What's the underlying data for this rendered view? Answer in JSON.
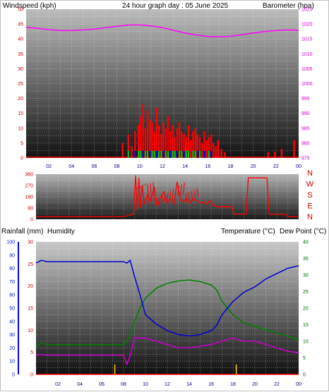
{
  "colors": {
    "wind": "#ff0000",
    "baro": "#ff00ff",
    "dir": "#ff0000",
    "rain": "#ff0000",
    "humidity": "#0000cc",
    "temperature": "#008000",
    "dewpoint": "#cc00cc",
    "title": "#ffff00",
    "windAxis": "#cc0000",
    "baroAxis": "#cc00cc",
    "humAxis": "#0000ff",
    "tempAxis": "#006600",
    "rainAxis": "#cc0000",
    "dirLetters": "#cc0000"
  },
  "chart_data": [
    {
      "type": "bar",
      "title": "24 hour graph day : 05 June 2025",
      "ylabel": "Windspeed (kph)",
      "y2label": "Barometer (hpa)",
      "ylim": [
        0,
        50
      ],
      "y2lim": [
        975,
        1025
      ],
      "yticks": [
        "50",
        "45",
        "40",
        "35",
        "30",
        "25",
        "20",
        "15",
        "10",
        "5",
        "0"
      ],
      "y2ticks": [
        "1025",
        "1020",
        "1015",
        "1010",
        "1005",
        "1000",
        "995",
        "990",
        "985",
        "980",
        "975"
      ],
      "xticks": [
        "02",
        "04",
        "06",
        "08",
        "10",
        "12",
        "14",
        "16",
        "18",
        "20",
        "22",
        "00"
      ],
      "series": [
        {
          "name": "Windspeed",
          "kind": "bars",
          "x": [
            8.5,
            9.0,
            9.3,
            9.6,
            9.9,
            10.1,
            10.3,
            10.5,
            10.7,
            10.9,
            11.1,
            11.3,
            11.5,
            11.7,
            11.9,
            12.1,
            12.3,
            12.5,
            12.7,
            12.9,
            13.1,
            13.3,
            13.5,
            13.7,
            13.9,
            14.1,
            14.3,
            14.5,
            14.7,
            14.9,
            15.1,
            15.3,
            15.5,
            15.7,
            15.9,
            16.1,
            16.3,
            16.5,
            16.7,
            16.9,
            17.2,
            17.5,
            21.3,
            21.9,
            22.5,
            23.6
          ],
          "values": [
            5,
            8,
            4,
            9,
            11,
            14,
            18,
            10,
            16,
            13,
            12,
            9,
            17,
            11,
            8,
            12,
            10,
            14,
            9,
            11,
            7,
            10,
            12,
            9,
            8,
            7,
            11,
            6,
            9,
            10,
            8,
            7,
            5,
            9,
            6,
            7,
            8,
            5,
            4,
            6,
            3,
            2,
            2,
            2,
            3,
            6
          ]
        },
        {
          "name": "Barometer",
          "kind": "line",
          "x": [
            0,
            1,
            2,
            3,
            4,
            5,
            6,
            7,
            8,
            9,
            10,
            11,
            12,
            13,
            14,
            15,
            16,
            17,
            18,
            19,
            20,
            21,
            22,
            23,
            24
          ],
          "values": [
            1018.9,
            1018.6,
            1018.1,
            1017.8,
            1017.8,
            1018.0,
            1018.3,
            1018.8,
            1019.3,
            1019.7,
            1019.7,
            1019.4,
            1018.8,
            1017.9,
            1017.0,
            1016.3,
            1015.8,
            1015.7,
            1015.9,
            1016.4,
            1017.0,
            1017.5,
            1017.8,
            1018.0,
            1017.9
          ]
        }
      ]
    },
    {
      "type": "line",
      "ylabel_letters": [
        "N",
        "W",
        "S",
        "E",
        "N"
      ],
      "ylim": [
        0,
        360
      ],
      "yticks": [
        "360",
        "270",
        "180",
        "90",
        "0"
      ],
      "x": [
        0,
        2,
        4,
        6,
        8,
        8.9,
        9.1,
        9.25,
        9.4,
        9.55,
        9.7,
        9.9,
        10.2,
        10.5,
        10.8,
        11.1,
        11.4,
        11.7,
        12.0,
        12.3,
        12.6,
        12.9,
        13.2,
        13.5,
        13.8,
        14.1,
        14.4,
        14.7,
        15.0,
        15.3,
        15.6,
        15.9,
        16.2,
        16.5,
        17.0,
        17.5,
        17.9,
        18.1,
        19.2,
        19.4,
        19.6,
        21.1,
        21.3,
        22.8,
        23.0,
        24
      ],
      "values": [
        20,
        20,
        20,
        20,
        20,
        40,
        350,
        70,
        330,
        90,
        270,
        120,
        200,
        150,
        260,
        110,
        180,
        220,
        130,
        160,
        120,
        300,
        150,
        140,
        170,
        130,
        160,
        150,
        130,
        140,
        120,
        150,
        110,
        100,
        100,
        100,
        100,
        40,
        40,
        330,
        330,
        330,
        40,
        40,
        20,
        20
      ]
    },
    {
      "type": "line",
      "ylabel": "Humidity",
      "y2label": "Temperature (°C)",
      "y2label2": "Dew Point (°C)",
      "rain_label": "Rainfall (mm)",
      "ylim": [
        0,
        100
      ],
      "rainlim": [
        0,
        30
      ],
      "templim": [
        0,
        40
      ],
      "yticks": [
        "100",
        "90",
        "80",
        "70",
        "60",
        "50",
        "40",
        "30",
        "20",
        "10",
        "0"
      ],
      "rainticks": [
        "30",
        "25",
        "20",
        "15",
        "10",
        "5",
        "0"
      ],
      "tempticks": [
        "40",
        "35",
        "30",
        "25",
        "20",
        "15",
        "10",
        "5",
        "0"
      ],
      "xticks": [
        "02",
        "04",
        "06",
        "08",
        "10",
        "12",
        "14",
        "16",
        "18",
        "20",
        "22",
        "00"
      ],
      "x": [
        0,
        0.5,
        1,
        2,
        3,
        4,
        5,
        6,
        7,
        8,
        8.3,
        8.6,
        9,
        9.5,
        10,
        11,
        12,
        13,
        14,
        15,
        16,
        16.5,
        17,
        18,
        19,
        20,
        21,
        22,
        23,
        24
      ],
      "series": [
        {
          "name": "Humidity",
          "values": [
            84,
            86,
            85,
            85,
            85,
            85,
            85,
            85,
            85,
            85,
            84,
            86,
            74,
            60,
            45,
            38,
            33,
            30,
            29,
            30,
            33,
            37,
            45,
            55,
            62,
            66,
            72,
            76,
            80,
            82
          ]
        },
        {
          "name": "Temperature",
          "values": [
            8.5,
            9.5,
            9.0,
            9.0,
            9.0,
            9.0,
            9.0,
            9.0,
            9.0,
            9.0,
            10,
            12,
            16,
            20,
            23,
            26,
            27.5,
            28.2,
            28.5,
            28.0,
            27.0,
            25.5,
            22,
            18,
            15.5,
            14.5,
            13.5,
            12.5,
            11.5,
            10.5
          ]
        },
        {
          "name": "Dew Point",
          "values": [
            5.8,
            6.0,
            5.8,
            5.8,
            5.8,
            5.8,
            5.8,
            5.8,
            5.8,
            5.8,
            3.0,
            5.5,
            11,
            11,
            11,
            10,
            9,
            8,
            8,
            8.5,
            9,
            9.5,
            10,
            11,
            10,
            10,
            9,
            8,
            7,
            6.5
          ]
        },
        {
          "name": "Rainfall",
          "values": [
            0,
            0,
            0,
            0,
            0,
            0,
            0,
            0,
            0,
            0,
            0,
            0,
            0,
            0,
            0,
            0,
            0,
            0,
            0,
            0,
            0,
            0,
            0,
            0,
            0,
            0,
            0,
            0,
            0,
            0
          ]
        }
      ]
    }
  ],
  "labels": {
    "top_left": "Windspeed (kph)",
    "top_title": "24 hour graph day : 05 June 2025",
    "top_right": "Barometer (hpa)",
    "bottom_rain": "Rainfall (mm)",
    "bottom_humidity": "Humidity",
    "bottom_temp": "Temperature (°C)",
    "bottom_dew": "Dew Point (°C)"
  }
}
